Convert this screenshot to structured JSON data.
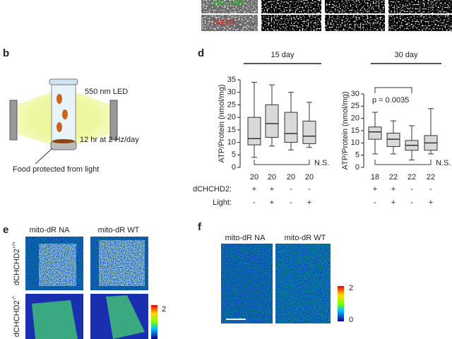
{
  "top_panel": {
    "row_labels": [
      "mito-GFP",
      "TMRM"
    ]
  },
  "panel_b": {
    "letter": "b",
    "labels": [
      "550 nm LED",
      "12 hr at 2 Hz/day",
      "Food protected from light"
    ]
  },
  "panel_d": {
    "letter": "d"
  },
  "chart_data": [
    {
      "type": "box",
      "title": "15 day",
      "y_label": "ATP/Protein (nmol/mg)",
      "categories": [
        "20",
        "20",
        "20",
        "20"
      ],
      "stats": [
        [
          4,
          9,
          11.5,
          20,
          34
        ],
        [
          8.5,
          12,
          17.5,
          25,
          33
        ],
        [
          7,
          10,
          13.5,
          22,
          30
        ],
        [
          8,
          9.5,
          12.5,
          18.5,
          26
        ]
      ],
      "color": "#d9d9d9",
      "ylim": [
        0,
        35
      ],
      "yticks": [
        0,
        5,
        10,
        15,
        20,
        25,
        30,
        35
      ],
      "rows": [
        {
          "label": "dCHCHD2:",
          "signs": [
            "+",
            "+",
            "-",
            "-"
          ]
        },
        {
          "label": "Light:",
          "signs": [
            "-",
            "+",
            "-",
            "+"
          ]
        }
      ],
      "annotations": [
        "N.S."
      ]
    },
    {
      "type": "box",
      "title": "30 day",
      "y_label": "ATP/Protein (nmol/mg)",
      "categories": [
        "18",
        "22",
        "22",
        "22"
      ],
      "stats": [
        [
          5.5,
          11.5,
          14.5,
          16.5,
          22.5
        ],
        [
          5.5,
          8.5,
          11.5,
          14,
          19
        ],
        [
          3,
          7,
          9,
          11,
          17
        ],
        [
          5.5,
          7,
          10,
          13,
          24
        ]
      ],
      "color": "#d9d9d9",
      "ylim": [
        0,
        30
      ],
      "yticks": [
        0,
        5,
        10,
        15,
        20,
        25,
        30
      ],
      "rows": [
        {
          "signs": [
            "+",
            "+",
            "-",
            "-"
          ]
        },
        {
          "signs": [
            "-",
            "+",
            "-",
            "+"
          ]
        }
      ],
      "annotations": [
        "p = 0.0035",
        "N.S."
      ]
    }
  ],
  "panel_e": {
    "letter": "e",
    "columns": [
      "mito-dR NA",
      "mito-dR WT"
    ],
    "rows": [
      {
        "name": "dCHCHD2",
        "sup": "+/+"
      },
      {
        "name": "dCHCHD2",
        "sup": "-/-"
      }
    ],
    "scale_max": "2"
  },
  "panel_f": {
    "letter": "f",
    "columns": [
      "mito-dR NA",
      "mito-dR WT"
    ],
    "scale_max": "2",
    "scale_min": "0"
  }
}
